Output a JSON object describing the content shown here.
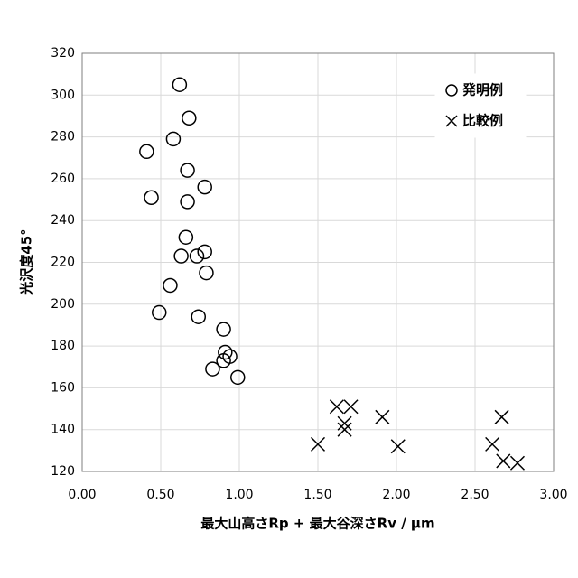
{
  "chart_data": {
    "type": "scatter",
    "x_label": "最大山高さRp + 最大谷深さRv / µm",
    "y_label": "光沢度45°",
    "xlim": [
      0,
      3
    ],
    "ylim": [
      120,
      320
    ],
    "xticks": [
      {
        "value": 0,
        "label": "0.00"
      },
      {
        "value": 0.5,
        "label": "0.50"
      },
      {
        "value": 1,
        "label": "1.00"
      },
      {
        "value": 1.5,
        "label": "1.50"
      },
      {
        "value": 2,
        "label": "2.00"
      },
      {
        "value": 2.5,
        "label": "2.50"
      },
      {
        "value": 3,
        "label": "3.00"
      }
    ],
    "yticks": [
      120,
      140,
      160,
      180,
      200,
      220,
      240,
      260,
      280,
      300,
      320
    ],
    "grid": true,
    "legend": "upper right",
    "series": [
      {
        "name": "発明例",
        "marker": "circle",
        "color": "#000000",
        "x": [
          0.62,
          0.68,
          0.58,
          0.41,
          0.67,
          0.44,
          0.78,
          0.67,
          0.66,
          0.63,
          0.73,
          0.78,
          0.79,
          0.56,
          0.49,
          0.74,
          0.9,
          0.91,
          0.94,
          0.9,
          0.83,
          0.99
        ],
        "y": [
          305,
          289,
          279,
          273,
          264,
          251,
          256,
          249,
          232,
          223,
          223,
          225,
          215,
          209,
          196,
          194,
          188,
          177,
          175,
          173,
          169,
          165
        ]
      },
      {
        "name": "比較例",
        "marker": "x",
        "color": "#000000",
        "x": [
          1.5,
          1.62,
          1.67,
          1.67,
          1.71,
          1.91,
          2.01,
          2.61,
          2.67,
          2.68,
          2.77
        ],
        "y": [
          133,
          151,
          143,
          140,
          151,
          146,
          132,
          133,
          146,
          125,
          124
        ]
      }
    ]
  }
}
